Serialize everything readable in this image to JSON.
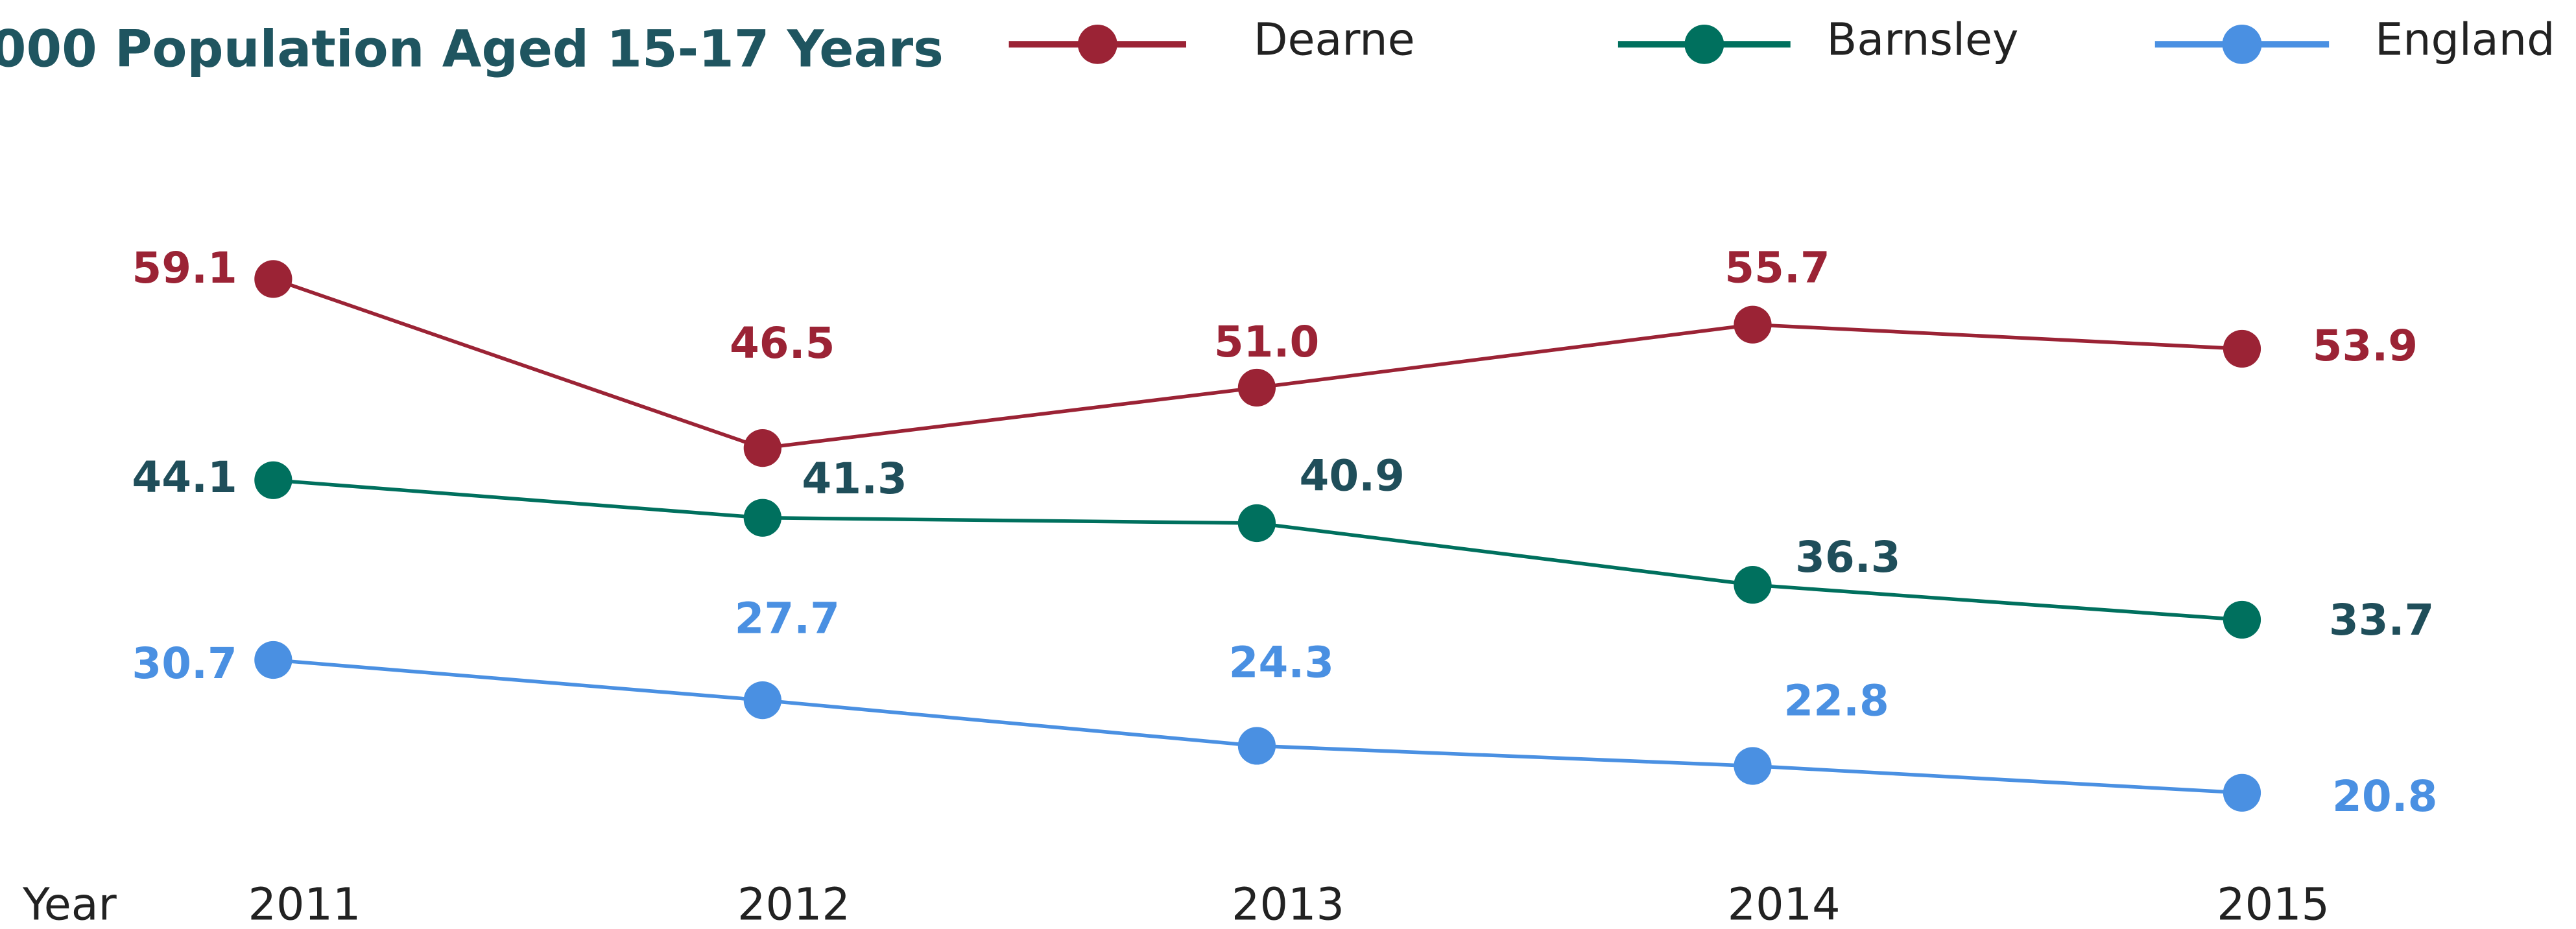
{
  "chart_data": {
    "type": "line",
    "title": "000 Population Aged 15-17 Years",
    "x_label": "Year",
    "categories": [
      "2011",
      "2012",
      "2013",
      "2014",
      "2015"
    ],
    "series": [
      {
        "name": "Dearne",
        "color": "#9b2335",
        "label_color": "#9b2335",
        "values": [
          59.1,
          46.5,
          51.0,
          55.7,
          53.9
        ],
        "value_labels": [
          "59.1",
          "46.5",
          "51.0",
          "55.7",
          "53.9"
        ]
      },
      {
        "name": "Barnsley",
        "color": "#00705e",
        "label_color": "#1f4e5a",
        "values": [
          44.1,
          41.3,
          40.9,
          36.3,
          33.7
        ],
        "value_labels": [
          "44.1",
          "41.3",
          "40.9",
          "36.3",
          "33.7"
        ]
      },
      {
        "name": "England",
        "color": "#4a90e2",
        "label_color": "#4a90e2",
        "values": [
          30.7,
          27.7,
          24.3,
          22.8,
          20.8
        ],
        "value_labels": [
          "30.7",
          "27.7",
          "24.3",
          "22.8",
          "20.8"
        ]
      }
    ]
  }
}
